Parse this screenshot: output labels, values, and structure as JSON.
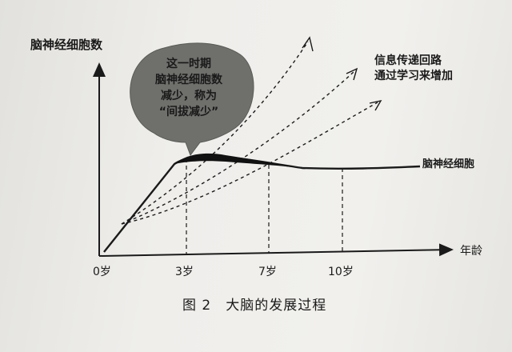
{
  "diagram": {
    "y_axis_label": "脑神经细胞数",
    "x_axis_label": "年龄",
    "ticks": [
      "0岁",
      "3岁",
      "7岁",
      "10岁"
    ],
    "callout_text": "这一时期\n脑神经细胞数\n减少，称为\n“间拔减少”",
    "synapse_label": "信息传递回路\n通过学习来增加",
    "neuron_curve_label": "脑神经细胞"
  },
  "caption": {
    "figure_number": "图 2",
    "title": "大脑的发展过程"
  }
}
